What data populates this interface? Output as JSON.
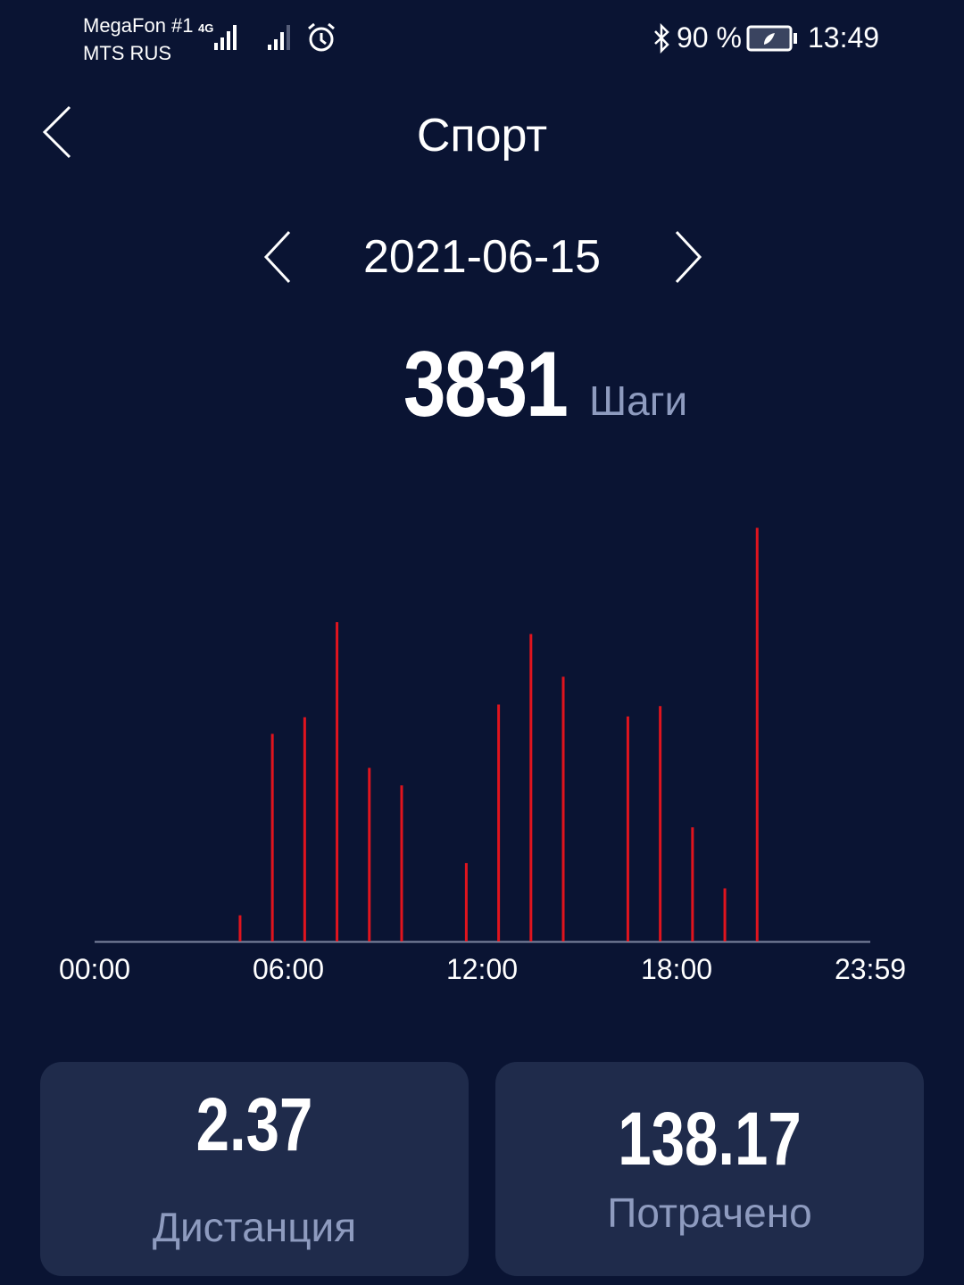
{
  "status_bar": {
    "carrier1": "MegaFon #1",
    "carrier2": "MTS RUS",
    "network": "4G",
    "battery": "90 %",
    "time": "13:49",
    "icons": [
      "signal-icon",
      "alarm-icon",
      "bluetooth-icon",
      "battery-icon"
    ]
  },
  "header": {
    "title": "Спорт",
    "back_icon": "chevron-left-icon"
  },
  "date_nav": {
    "date": "2021-06-15",
    "prev_icon": "chevron-left-icon",
    "next_icon": "chevron-right-icon"
  },
  "summary": {
    "steps": "3831",
    "unit": "Шаги"
  },
  "chart_data": {
    "type": "bar",
    "x_ticks": [
      "00:00",
      "06:00",
      "12:00",
      "18:00",
      "23:59"
    ],
    "hours": [
      4,
      5,
      6,
      7,
      8,
      9,
      11,
      12,
      13,
      14,
      16,
      17,
      18,
      19,
      20
    ],
    "values": [
      33,
      262,
      283,
      403,
      219,
      197,
      99,
      299,
      388,
      334,
      284,
      297,
      144,
      67,
      522
    ],
    "ylim": [
      0,
      580
    ],
    "bar_color": "#e0141e",
    "grid": false
  },
  "cards": [
    {
      "value": "2.37",
      "label": "Дистанция"
    },
    {
      "value": "138.17",
      "label": "Потрачено"
    }
  ]
}
